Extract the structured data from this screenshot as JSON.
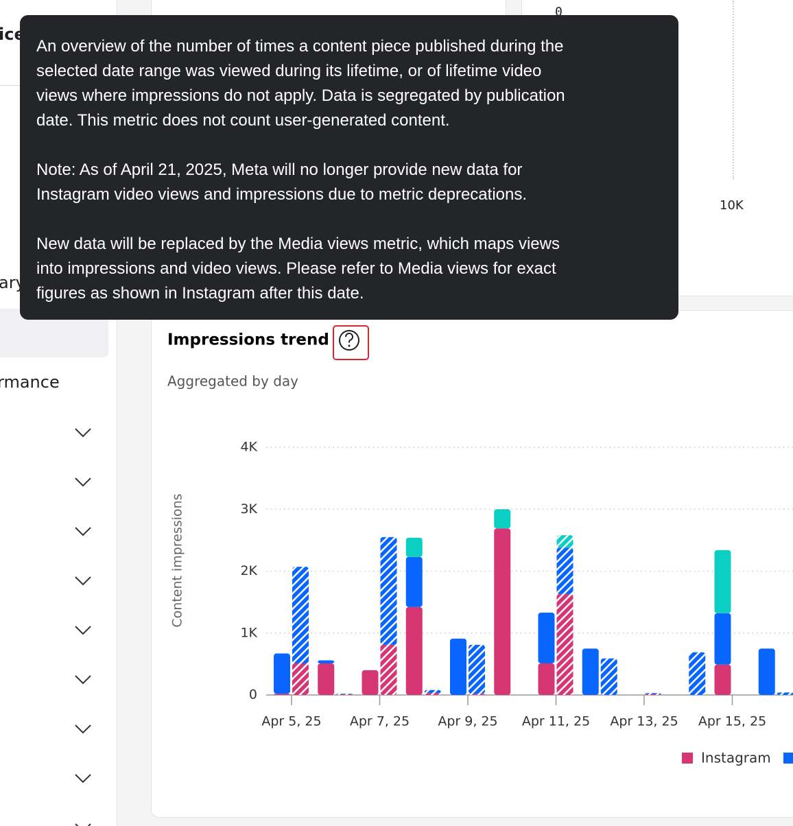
{
  "sidebar": {
    "texts": [
      "ice",
      "ary",
      "rmance"
    ]
  },
  "top_right_chart": {
    "tick_labels": [
      "0",
      "10K"
    ]
  },
  "tooltip": {
    "paragraphs": [
      {
        "lines": [
          "An overview of the number of times a content piece published during the",
          "selected date range was viewed during its lifetime, or of lifetime video",
          "views where impressions do not apply. Data is segregated by publication",
          "date. This metric does not count user-generated content."
        ]
      },
      {
        "lines": [
          "Note: As of April 21, 2025, Meta will no longer provide new data for",
          "Instagram video views and impressions due to metric deprecations."
        ]
      },
      {
        "lines": [
          "New data will be replaced by the Media views metric, which maps views",
          "into impressions and video views. Please refer to Media views for exact",
          "figures as shown in Instagram after this date."
        ]
      }
    ]
  },
  "chart_data": {
    "type": "stacked-bar",
    "title": "Impressions trend",
    "subtitle": "Aggregated by day",
    "ylabel": "Content impressions",
    "categories": [
      "Apr 5, 25",
      null,
      "Apr 7, 25",
      null,
      "Apr 9, 25",
      null,
      "Apr 11, 25",
      null,
      "Apr 13, 25",
      null,
      "Apr 15, 25",
      null
    ],
    "ylim": [
      0,
      4000
    ],
    "yticks": [
      0,
      {
        "value": 1000,
        "label": "1K"
      },
      {
        "value": 2000,
        "label": "2K"
      },
      {
        "value": 3000,
        "label": "3K"
      },
      {
        "value": 4000,
        "label": "4K"
      }
    ],
    "grid": true,
    "series": [
      {
        "name": "Instagram",
        "color": "#d63674",
        "values": [
          20,
          510,
          400,
          1420,
          0,
          2690,
          510,
          0,
          0,
          0,
          490,
          0
        ],
        "hatched_values": [
          510,
          10,
          810,
          30,
          20,
          0,
          1630,
          0,
          15,
          0,
          0,
          0
        ]
      },
      {
        "color": "#0866ff",
        "values": [
          650,
          50,
          0,
          810,
          910,
          0,
          820,
          750,
          0,
          0,
          830,
          750
        ],
        "hatched_values": [
          1560,
          10,
          1740,
          50,
          790,
          0,
          750,
          590,
          15,
          690,
          0,
          40
        ]
      },
      {
        "color": "#0ccfc4",
        "values": [
          0,
          0,
          0,
          310,
          0,
          310,
          0,
          0,
          0,
          0,
          1020,
          0
        ],
        "hatched_values": [
          0,
          0,
          0,
          0,
          0,
          0,
          200,
          0,
          0,
          0,
          0,
          0
        ]
      }
    ]
  }
}
